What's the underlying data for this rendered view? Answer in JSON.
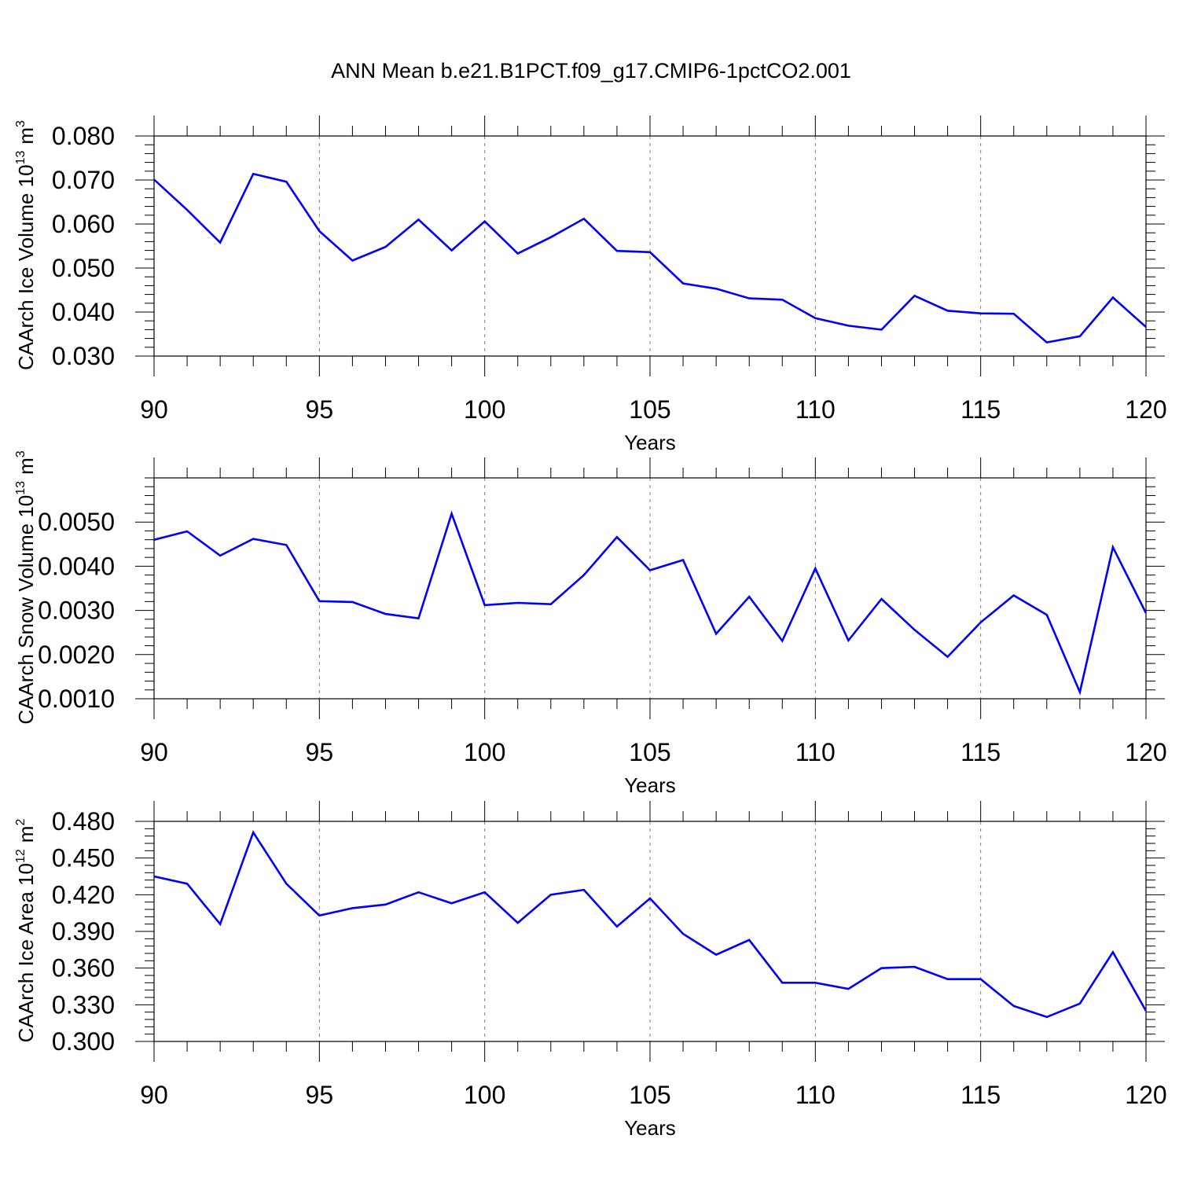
{
  "title": "ANN Mean b.e21.B1PCT.f09_g17.CMIP6-1pctCO2.001",
  "colors": {
    "line": "#0000ff",
    "axis": "#000000",
    "grid": "#808080",
    "background": "#ffffff"
  },
  "chart_data": [
    {
      "type": "line",
      "xlabel": "Years",
      "ylabel_text": "CAArch Ice Volume 10",
      "ylabel_exp": "13",
      "ylabel_unit": "m",
      "ylabel_unit_exp": "3",
      "xlim": [
        90,
        120
      ],
      "ylim": [
        0.03,
        0.08
      ],
      "xticks": [
        90,
        95,
        100,
        105,
        110,
        115,
        120
      ],
      "xtick_labels": [
        "90",
        "95",
        "100",
        "105",
        "110",
        "115",
        "120"
      ],
      "yticks": [
        0.03,
        0.04,
        0.05,
        0.06,
        0.07,
        0.08
      ],
      "ytick_labels": [
        "0.030",
        "0.040",
        "0.050",
        "0.060",
        "0.070",
        "0.080"
      ],
      "grid": "vertical-dashed",
      "x": [
        90,
        91,
        92,
        93,
        94,
        95,
        96,
        97,
        98,
        99,
        100,
        101,
        102,
        103,
        104,
        105,
        106,
        107,
        108,
        109,
        110,
        111,
        112,
        113,
        114,
        115,
        116,
        117,
        118,
        119,
        120
      ],
      "values": [
        0.0701,
        0.0632,
        0.0558,
        0.0714,
        0.0696,
        0.0584,
        0.0517,
        0.0548,
        0.061,
        0.054,
        0.0606,
        0.0533,
        0.057,
        0.0612,
        0.0539,
        0.0536,
        0.0465,
        0.0453,
        0.0431,
        0.0428,
        0.0386,
        0.0369,
        0.036,
        0.0437,
        0.0403,
        0.0397,
        0.0396,
        0.0331,
        0.0345,
        0.0433,
        0.0366
      ]
    },
    {
      "type": "line",
      "xlabel": "Years",
      "ylabel_text": "CAArch Snow Volume 10",
      "ylabel_exp": "13",
      "ylabel_unit": "m",
      "ylabel_unit_exp": "3",
      "xlim": [
        90,
        120
      ],
      "ylim": [
        0.001,
        0.006
      ],
      "xticks": [
        90,
        95,
        100,
        105,
        110,
        115,
        120
      ],
      "xtick_labels": [
        "90",
        "95",
        "100",
        "105",
        "110",
        "115",
        "120"
      ],
      "yticks": [
        0.001,
        0.002,
        0.003,
        0.004,
        0.005
      ],
      "ytick_labels": [
        "0.0010",
        "0.0020",
        "0.0030",
        "0.0040",
        "0.0050"
      ],
      "grid": "vertical-dashed",
      "x": [
        90,
        91,
        92,
        93,
        94,
        95,
        96,
        97,
        98,
        99,
        100,
        101,
        102,
        103,
        104,
        105,
        106,
        107,
        108,
        109,
        110,
        111,
        112,
        113,
        114,
        115,
        116,
        117,
        118,
        119,
        120
      ],
      "values": [
        0.0046,
        0.00479,
        0.00424,
        0.00462,
        0.00448,
        0.00321,
        0.00319,
        0.00292,
        0.00282,
        0.00519,
        0.00312,
        0.00317,
        0.00314,
        0.0038,
        0.00466,
        0.00391,
        0.00414,
        0.00247,
        0.00331,
        0.00231,
        0.00395,
        0.00232,
        0.00326,
        0.00256,
        0.00195,
        0.00273,
        0.00334,
        0.0029,
        0.00115,
        0.00443,
        0.00294
      ]
    },
    {
      "type": "line",
      "xlabel": "Years",
      "ylabel_text": "CAArch Ice Area 10",
      "ylabel_exp": "12",
      "ylabel_unit": "m",
      "ylabel_unit_exp": "2",
      "xlim": [
        90,
        120
      ],
      "ylim": [
        0.3,
        0.48
      ],
      "xticks": [
        90,
        95,
        100,
        105,
        110,
        115,
        120
      ],
      "xtick_labels": [
        "90",
        "95",
        "100",
        "105",
        "110",
        "115",
        "120"
      ],
      "yticks": [
        0.3,
        0.33,
        0.36,
        0.39,
        0.42,
        0.45,
        0.48
      ],
      "ytick_labels": [
        "0.300",
        "0.330",
        "0.360",
        "0.390",
        "0.420",
        "0.450",
        "0.480"
      ],
      "grid": "vertical-dashed",
      "x": [
        90,
        91,
        92,
        93,
        94,
        95,
        96,
        97,
        98,
        99,
        100,
        101,
        102,
        103,
        104,
        105,
        106,
        107,
        108,
        109,
        110,
        111,
        112,
        113,
        114,
        115,
        116,
        117,
        118,
        119,
        120
      ],
      "values": [
        0.435,
        0.429,
        0.396,
        0.471,
        0.429,
        0.403,
        0.409,
        0.412,
        0.422,
        0.413,
        0.422,
        0.397,
        0.42,
        0.424,
        0.394,
        0.417,
        0.388,
        0.371,
        0.383,
        0.348,
        0.348,
        0.343,
        0.36,
        0.361,
        0.351,
        0.351,
        0.329,
        0.32,
        0.331,
        0.373,
        0.325
      ]
    }
  ]
}
